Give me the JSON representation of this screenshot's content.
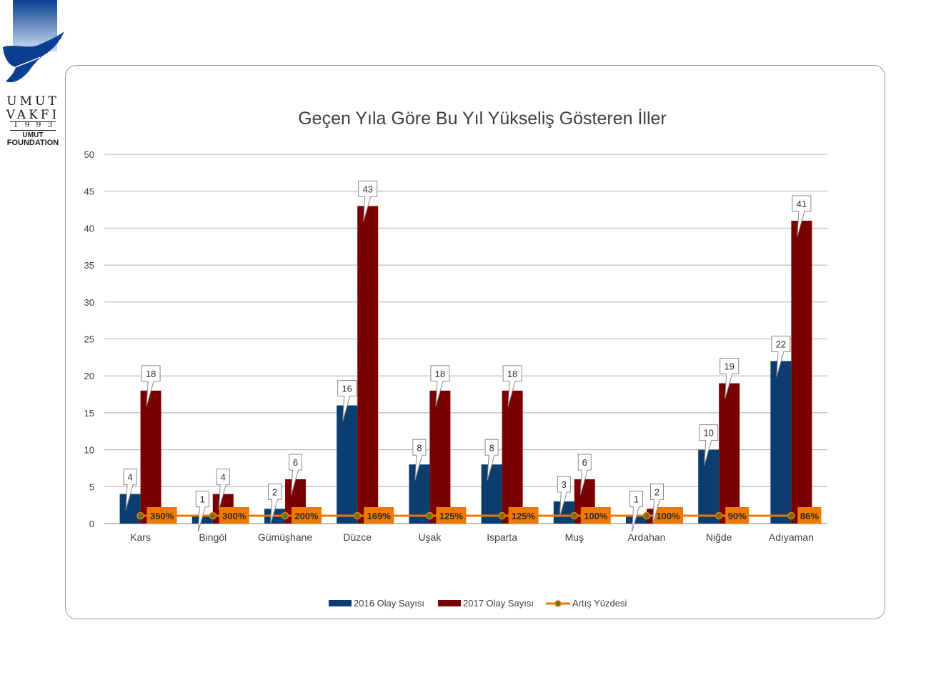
{
  "logo": {
    "name_line1": "UMUT",
    "name_line2": "VAKFI",
    "year": "1993",
    "en_line1": "UMUT",
    "en_line2": "FOUNDATION"
  },
  "colors": {
    "series_2016": "#0b3d6e",
    "series_2017": "#7a0000",
    "line": "#f07800",
    "line_marker": "#5b7a1e",
    "grid": "#b0b0b0"
  },
  "chart_data": {
    "type": "bar",
    "title": "Geçen Yıla Göre Bu Yıl Yükseliş Gösteren İller",
    "categories": [
      "Kars",
      "Bingöl",
      "Gümüşhane",
      "Düzce",
      "Uşak",
      "Isparta",
      "Muş",
      "Ardahan",
      "Niğde",
      "Adıyaman"
    ],
    "series": [
      {
        "name": "2016 Olay Sayısı",
        "type": "bar",
        "values": [
          4,
          1,
          2,
          16,
          8,
          8,
          3,
          1,
          10,
          22
        ]
      },
      {
        "name": "2017 Olay Sayısı",
        "type": "bar",
        "values": [
          18,
          4,
          6,
          43,
          18,
          18,
          6,
          2,
          19,
          41
        ]
      },
      {
        "name": "Artış Yüzdesi",
        "type": "line",
        "values": [
          350,
          300,
          200,
          169,
          125,
          125,
          100,
          100,
          90,
          86
        ],
        "labels": [
          "350%",
          "300%",
          "200%",
          "169%",
          "125%",
          "125%",
          "100%",
          "100%",
          "90%",
          "86%"
        ]
      }
    ],
    "ylim": [
      0,
      50
    ],
    "yticks": [
      0,
      5,
      10,
      15,
      20,
      25,
      30,
      35,
      40,
      45,
      50
    ],
    "xlabel": "",
    "ylabel": "",
    "grid": true,
    "legend": "bottom"
  }
}
